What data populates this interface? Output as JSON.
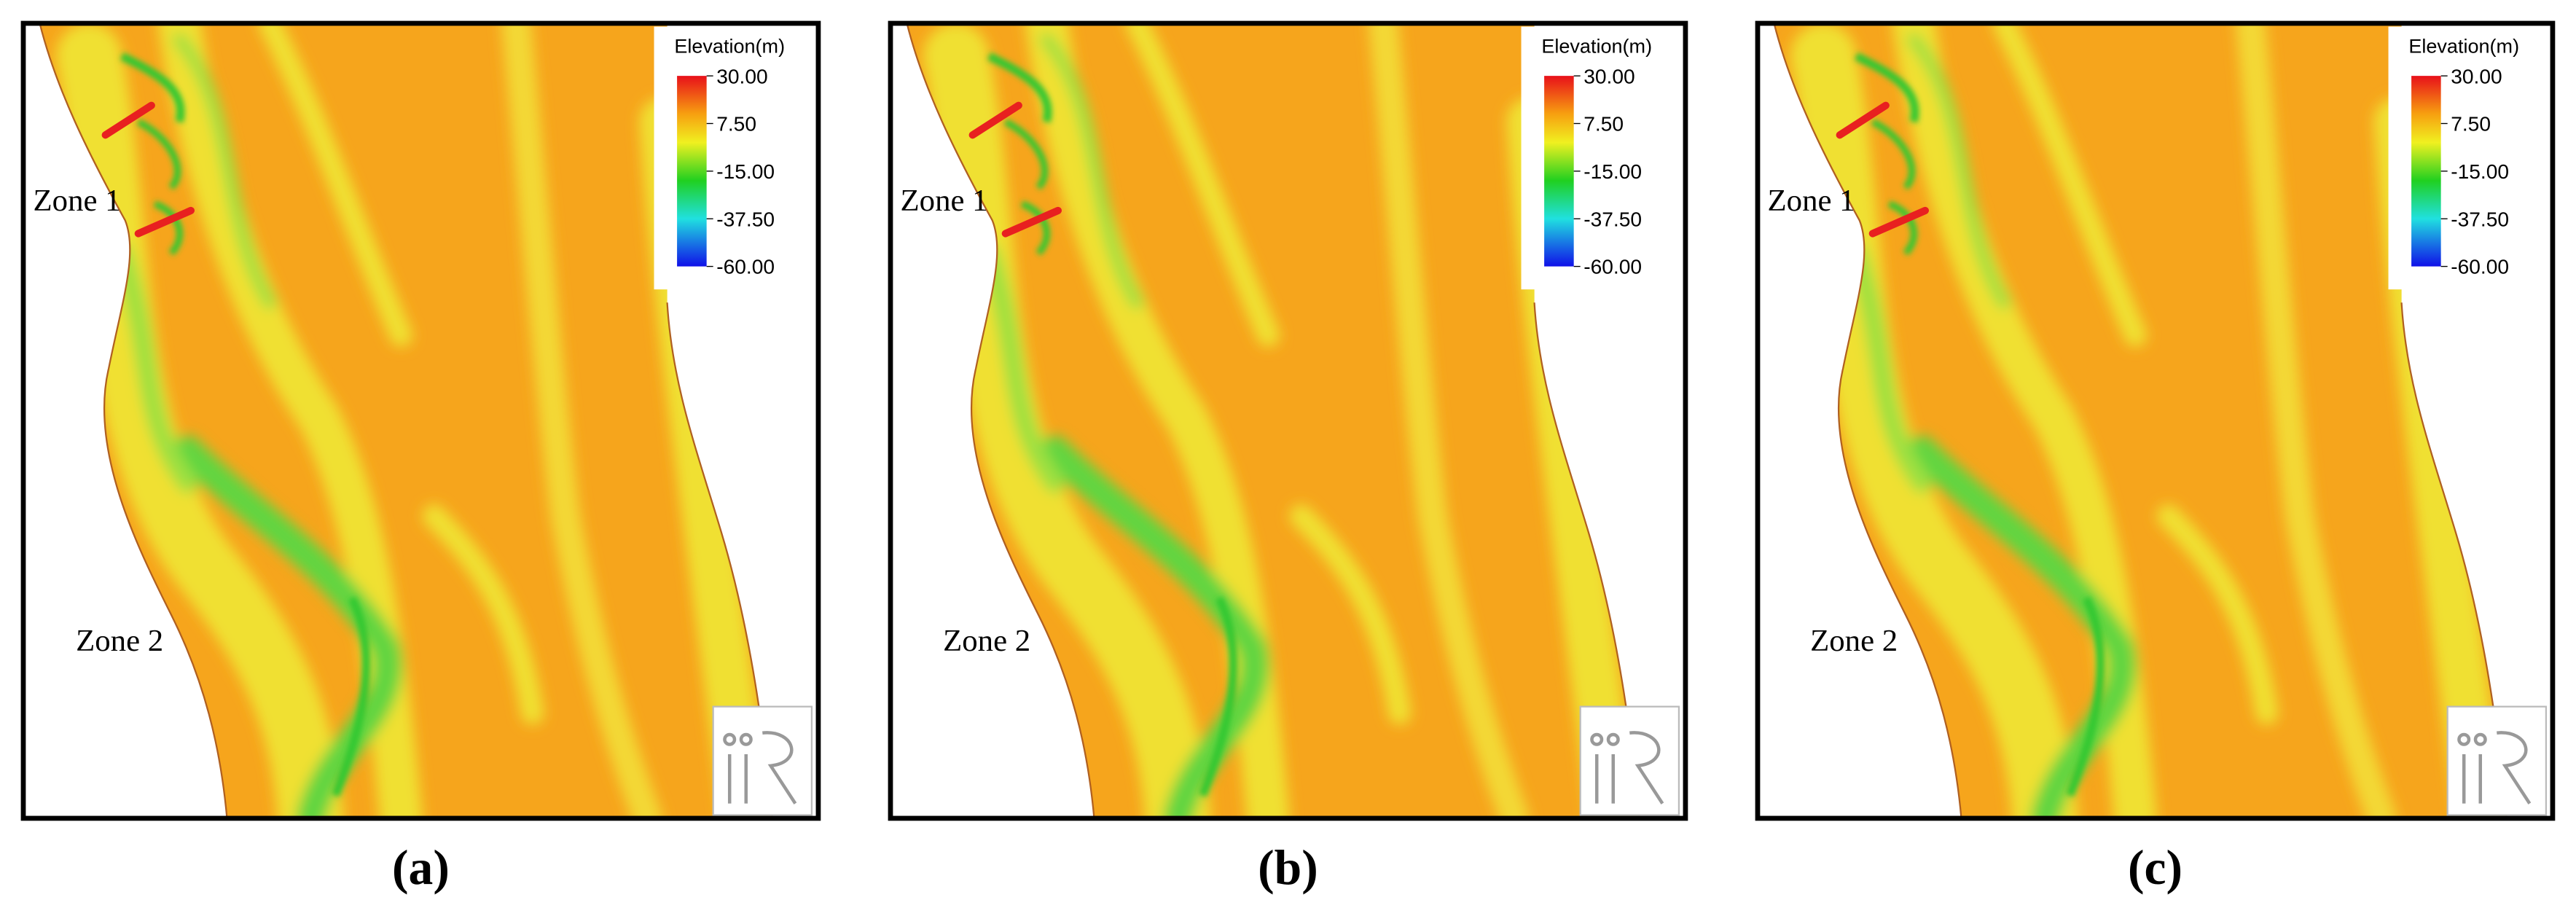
{
  "legend": {
    "title": "Elevation(m)",
    "range": [
      -60,
      30
    ],
    "ticks": [
      {
        "value": 30,
        "label": "30.00"
      },
      {
        "value": 7.5,
        "label": "7.50"
      },
      {
        "value": -15,
        "label": "-15.00"
      },
      {
        "value": -37.5,
        "label": "-37.50"
      },
      {
        "value": -60,
        "label": "-60.00"
      }
    ]
  },
  "zones": [
    "Zone 1",
    "Zone 2"
  ],
  "panels": [
    {
      "label": "(a)"
    },
    {
      "label": "(b)"
    },
    {
      "label": "(c)"
    }
  ]
}
